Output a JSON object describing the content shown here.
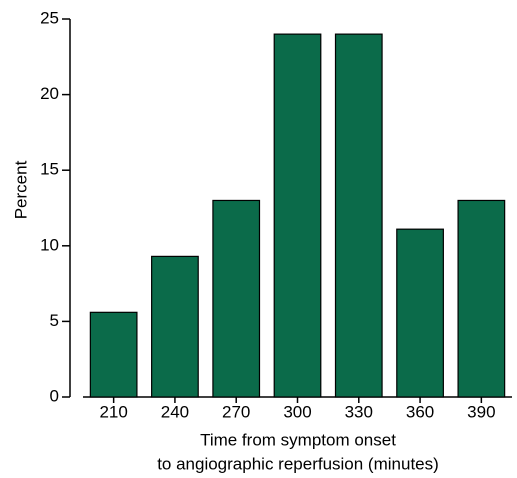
{
  "chart_data": {
    "type": "bar",
    "categories": [
      "210",
      "240",
      "270",
      "300",
      "330",
      "360",
      "390"
    ],
    "values": [
      5.6,
      9.3,
      13,
      24,
      24,
      11.1,
      13
    ],
    "color": "#0b6b4a",
    "ylabel": "Percent",
    "xlabel": [
      "Time from symptom onset",
      "to angiographic reperfusion (minutes)"
    ],
    "ylim": [
      0,
      25
    ],
    "yticks": [
      0,
      5,
      10,
      15,
      20,
      25
    ],
    "grid": false
  }
}
